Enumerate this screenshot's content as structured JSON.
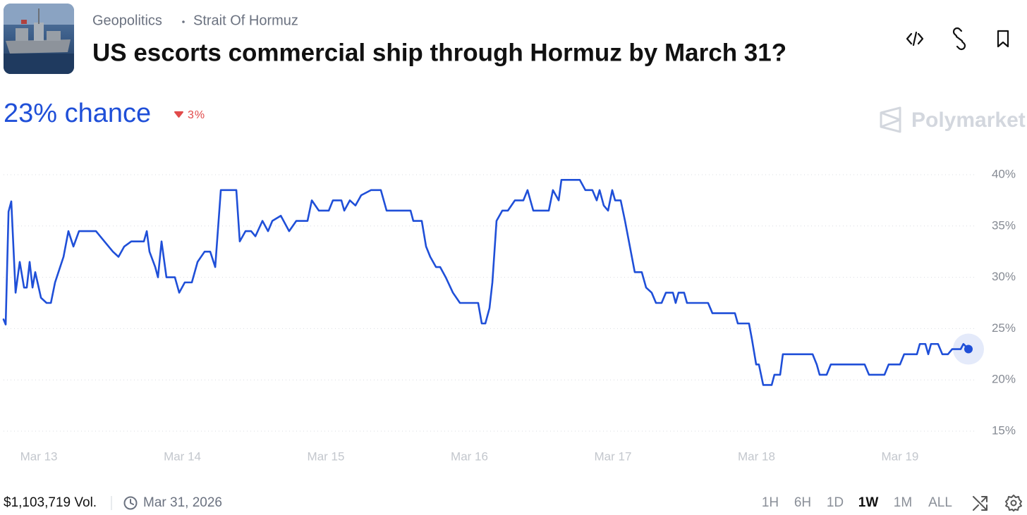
{
  "header": {
    "category": "Geopolitics",
    "subcategory": "Strait Of Hormuz",
    "title": "US escorts commercial ship through Hormuz by March 31?"
  },
  "odds": {
    "chance": "23% chance",
    "change": "3%"
  },
  "brand": "Polymarket",
  "chart_data": {
    "type": "line",
    "color": "#1f4fd8",
    "grid": true,
    "x": [
      -0.246,
      -0.231,
      -0.211,
      -0.192,
      -0.162,
      -0.133,
      -0.103,
      -0.084,
      -0.064,
      -0.044,
      -0.025,
      0.015,
      0.054,
      0.084,
      0.113,
      0.172,
      0.206,
      0.241,
      0.28,
      0.398,
      0.457,
      0.516,
      0.555,
      0.595,
      0.644,
      0.732,
      0.752,
      0.771,
      0.811,
      0.83,
      0.855,
      0.889,
      0.948,
      0.978,
      1.017,
      1.066,
      1.106,
      1.155,
      1.194,
      1.229,
      1.268,
      1.376,
      1.4,
      1.44,
      1.479,
      1.509,
      1.558,
      1.597,
      1.627,
      1.686,
      1.744,
      1.794,
      1.872,
      1.902,
      1.951,
      2.02,
      2.049,
      2.108,
      2.128,
      2.167,
      2.206,
      2.246,
      2.314,
      2.383,
      2.423,
      2.59,
      2.609,
      2.668,
      2.698,
      2.727,
      2.767,
      2.796,
      2.835,
      2.885,
      2.934,
      3.061,
      3.086,
      3.111,
      3.14,
      3.16,
      3.189,
      3.229,
      3.268,
      3.317,
      3.376,
      3.405,
      3.445,
      3.553,
      3.582,
      3.622,
      3.641,
      3.769,
      3.808,
      3.857,
      3.887,
      3.907,
      3.936,
      3.966,
      3.995,
      4.015,
      4.054,
      4.084,
      4.118,
      4.152,
      4.201,
      4.231,
      4.27,
      4.3,
      4.339,
      4.369,
      4.418,
      4.437,
      4.457,
      4.496,
      4.516,
      4.663,
      4.693,
      4.85,
      4.87,
      4.948,
      4.968,
      4.998,
      5.017,
      5.047,
      5.106,
      5.125,
      5.165,
      5.184,
      5.391,
      5.42,
      5.44,
      5.489,
      5.518,
      5.754,
      5.784,
      5.892,
      5.921,
      6.0,
      6.029,
      6.118,
      6.138,
      6.177,
      6.197,
      6.216,
      6.265,
      6.295,
      6.334,
      6.364,
      6.423,
      6.442,
      6.477
    ],
    "values": [
      25.9,
      25.4,
      36.4,
      37.4,
      28.5,
      31.5,
      29,
      29,
      31.5,
      29,
      30.5,
      28,
      27.5,
      27.5,
      29.5,
      32,
      34.5,
      33,
      34.5,
      34.5,
      33.5,
      32.5,
      32,
      33,
      33.5,
      33.5,
      34.5,
      32.5,
      31,
      30,
      33.5,
      30,
      30,
      28.5,
      29.5,
      29.5,
      31.5,
      32.5,
      32.5,
      31,
      38.5,
      38.5,
      33.5,
      34.5,
      34.5,
      34,
      35.5,
      34.5,
      35.5,
      36,
      34.5,
      35.5,
      35.5,
      37.5,
      36.5,
      36.5,
      37.5,
      37.5,
      36.5,
      37.5,
      37,
      38,
      38.5,
      38.5,
      36.5,
      36.5,
      35.5,
      35.5,
      33,
      32,
      31,
      31,
      30,
      28.5,
      27.5,
      27.5,
      25.5,
      25.5,
      27,
      29.5,
      35.5,
      36.5,
      36.5,
      37.5,
      37.5,
      38.5,
      36.5,
      36.5,
      38.5,
      37.5,
      39.5,
      39.5,
      38.5,
      38.5,
      37.5,
      38.5,
      37,
      36.5,
      38.5,
      37.5,
      37.5,
      35.5,
      33,
      30.5,
      30.5,
      29,
      28.5,
      27.5,
      27.5,
      28.5,
      28.5,
      27.5,
      28.5,
      28.5,
      27.5,
      27.5,
      26.5,
      26.5,
      25.5,
      25.5,
      24,
      21.5,
      21.5,
      19.5,
      19.5,
      20.5,
      20.5,
      22.5,
      22.5,
      21.5,
      20.5,
      20.5,
      21.5,
      21.5,
      20.5,
      20.5,
      21.5,
      21.5,
      22.5,
      22.5,
      23.5,
      23.5,
      22.5,
      23.5,
      23.5,
      22.5,
      22.5,
      23,
      23,
      23.5,
      23
    ],
    "xlim": [
      -0.246,
      6.536
    ],
    "xticks": [
      {
        "value": 0,
        "label": "Mar 13"
      },
      {
        "value": 1,
        "label": "Mar 14"
      },
      {
        "value": 2,
        "label": "Mar 15"
      },
      {
        "value": 3,
        "label": "Mar 16"
      },
      {
        "value": 4,
        "label": "Mar 17"
      },
      {
        "value": 5,
        "label": "Mar 18"
      },
      {
        "value": 6,
        "label": "Mar 19"
      }
    ],
    "ylim": [
      15,
      40
    ],
    "yticks": [
      {
        "value": 15,
        "label": "15%"
      },
      {
        "value": 20,
        "label": "20%"
      },
      {
        "value": 25,
        "label": "25%"
      },
      {
        "value": 30,
        "label": "30%"
      },
      {
        "value": 35,
        "label": "35%"
      },
      {
        "value": 40,
        "label": "40%"
      }
    ]
  },
  "footer": {
    "volume": "$1,103,719 Vol.",
    "end_date": "Mar 31, 2026",
    "timeframes": [
      "1H",
      "6H",
      "1D",
      "1W",
      "1M",
      "ALL"
    ],
    "selected_timeframe": "1W"
  }
}
